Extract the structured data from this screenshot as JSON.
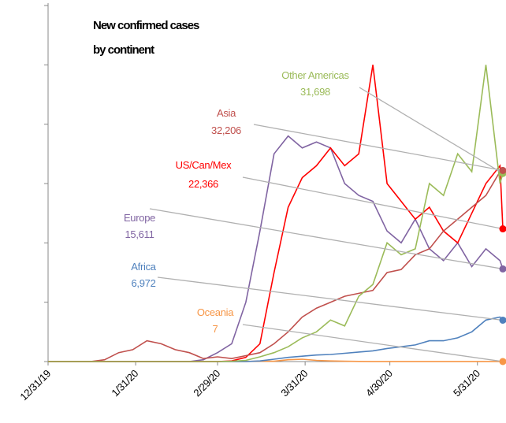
{
  "chart_data": {
    "type": "line",
    "title": [
      "New confirmed cases",
      "by continent"
    ],
    "x": [
      "12/31/19",
      "1/5/20",
      "1/10/20",
      "1/15/20",
      "1/20/20",
      "1/25/20",
      "1/30/20",
      "2/4/20",
      "2/9/20",
      "2/14/20",
      "2/19/20",
      "2/24/20",
      "2/29/20",
      "3/5/20",
      "3/10/20",
      "3/15/20",
      "3/20/20",
      "3/25/20",
      "3/30/20",
      "4/4/20",
      "4/9/20",
      "4/14/20",
      "4/19/20",
      "4/24/20",
      "4/29/20",
      "5/4/20",
      "5/9/20",
      "5/14/20",
      "5/19/20",
      "5/24/20",
      "5/29/20",
      "6/3/20",
      "6/8/20",
      "6/9/20"
    ],
    "xlim": [
      "12/31/19",
      "6/9/20"
    ],
    "xticks": [
      "12/31/19",
      "1/31/20",
      "2/29/20",
      "3/31/20",
      "4/30/20",
      "5/31/20"
    ],
    "ylim": [
      0,
      60000
    ],
    "yticks": [
      0,
      10000,
      20000,
      30000,
      40000,
      50000,
      60000
    ],
    "series": [
      {
        "name": "Other Americas",
        "color": "#9bbb59",
        "values": [
          0,
          0,
          0,
          0,
          0,
          0,
          0,
          0,
          0,
          0,
          0,
          0,
          0,
          50,
          200,
          800,
          1500,
          2500,
          4000,
          5000,
          7000,
          6000,
          11000,
          13000,
          20000,
          18000,
          19000,
          30000,
          28000,
          35000,
          32000,
          50000,
          30000,
          31698
        ],
        "value_labels": [
          null,
          null,
          null,
          null,
          null,
          null,
          null,
          null,
          null,
          null,
          null,
          null,
          null,
          null,
          null,
          null,
          null,
          null,
          null,
          null,
          null,
          null,
          null,
          null,
          null,
          null,
          null,
          null,
          null,
          null,
          null,
          null,
          null,
          "31,698"
        ]
      },
      {
        "name": "Asia",
        "color": "#c0504d",
        "values": [
          0,
          0,
          0,
          0,
          300,
          1500,
          2000,
          3500,
          3000,
          2000,
          1500,
          500,
          800,
          500,
          1000,
          1500,
          3000,
          5000,
          7500,
          9000,
          10000,
          11000,
          11500,
          12000,
          15000,
          15500,
          18000,
          19000,
          22000,
          24000,
          26000,
          28000,
          32000,
          32206
        ],
        "value_labels": [
          null,
          null,
          null,
          null,
          null,
          null,
          null,
          null,
          null,
          null,
          null,
          null,
          null,
          null,
          null,
          null,
          null,
          null,
          null,
          null,
          null,
          null,
          null,
          null,
          null,
          null,
          null,
          null,
          null,
          null,
          null,
          null,
          null,
          "32,206"
        ]
      },
      {
        "name": "US/Can/Mex",
        "color": "#ff0000",
        "values": [
          0,
          0,
          0,
          0,
          0,
          0,
          0,
          0,
          0,
          0,
          0,
          0,
          0,
          100,
          700,
          3000,
          15000,
          26000,
          31000,
          33000,
          36000,
          33000,
          35000,
          50000,
          30000,
          27000,
          24000,
          26000,
          22000,
          20000,
          25000,
          30000,
          33000,
          22366
        ],
        "value_labels": [
          null,
          null,
          null,
          null,
          null,
          null,
          null,
          null,
          null,
          null,
          null,
          null,
          null,
          null,
          null,
          null,
          null,
          null,
          null,
          null,
          null,
          null,
          null,
          null,
          null,
          null,
          null,
          null,
          null,
          null,
          null,
          null,
          null,
          "22,366"
        ]
      },
      {
        "name": "Europe",
        "color": "#8064a2",
        "values": [
          0,
          0,
          0,
          0,
          0,
          0,
          0,
          0,
          0,
          0,
          0,
          300,
          1500,
          3000,
          10000,
          22000,
          35000,
          38000,
          36000,
          37000,
          36000,
          30000,
          28000,
          27000,
          22000,
          20000,
          24000,
          19000,
          17000,
          20000,
          16000,
          19000,
          17000,
          15611
        ],
        "value_labels": [
          null,
          null,
          null,
          null,
          null,
          null,
          null,
          null,
          null,
          null,
          null,
          null,
          null,
          null,
          null,
          null,
          null,
          null,
          null,
          null,
          null,
          null,
          null,
          null,
          null,
          null,
          null,
          null,
          null,
          null,
          null,
          null,
          null,
          "15,611"
        ]
      },
      {
        "name": "Africa",
        "color": "#4f81bd",
        "values": [
          0,
          0,
          0,
          0,
          0,
          0,
          0,
          0,
          0,
          0,
          0,
          0,
          0,
          0,
          0,
          100,
          400,
          700,
          900,
          1100,
          1200,
          1400,
          1600,
          1800,
          2200,
          2500,
          2800,
          3500,
          3500,
          4000,
          5000,
          7000,
          7500,
          6972
        ],
        "value_labels": [
          null,
          null,
          null,
          null,
          null,
          null,
          null,
          null,
          null,
          null,
          null,
          null,
          null,
          null,
          null,
          null,
          null,
          null,
          null,
          null,
          null,
          null,
          null,
          null,
          null,
          null,
          null,
          null,
          null,
          null,
          null,
          null,
          null,
          "6,972"
        ]
      },
      {
        "name": "Oceania",
        "color": "#f79646",
        "values": [
          0,
          0,
          0,
          0,
          0,
          0,
          0,
          0,
          0,
          0,
          0,
          0,
          0,
          10,
          20,
          50,
          50,
          300,
          400,
          200,
          100,
          50,
          20,
          10,
          10,
          10,
          10,
          10,
          10,
          10,
          10,
          10,
          10,
          7
        ]
      }
    ]
  }
}
